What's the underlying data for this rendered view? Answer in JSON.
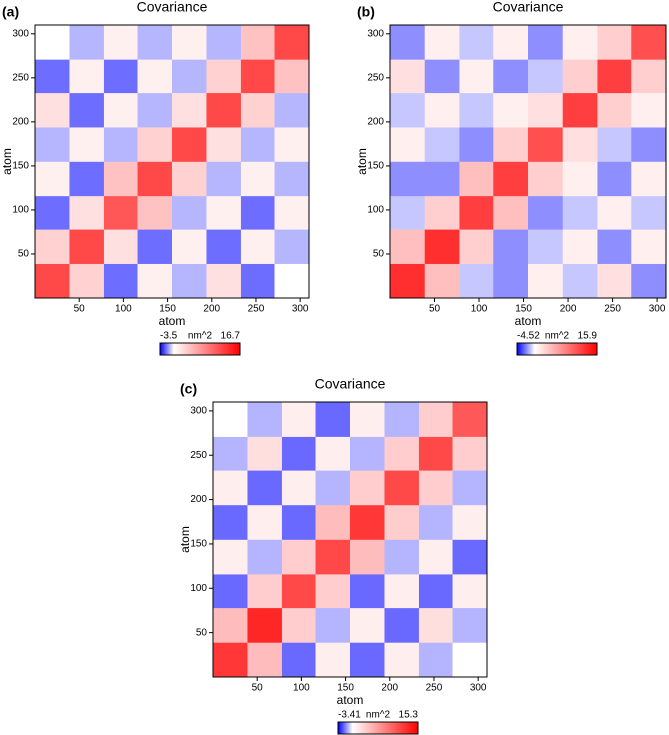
{
  "chart_data": [
    {
      "type": "heatmap",
      "panel_label": "(a)",
      "title": "Covariance",
      "xlabel": "atom",
      "ylabel": "atom",
      "xlim": [
        0,
        310
      ],
      "ylim": [
        0,
        310
      ],
      "xticks": [
        50,
        100,
        150,
        200,
        250,
        300
      ],
      "yticks": [
        50,
        100,
        150,
        200,
        250,
        300
      ],
      "xbins": [
        0,
        39,
        78,
        116,
        155,
        194,
        233,
        271,
        310
      ],
      "ybins": [
        0,
        39,
        78,
        116,
        155,
        194,
        233,
        271,
        310
      ],
      "z": [
        [
          12,
          3,
          -2,
          1,
          -1,
          2,
          -2,
          0
        ],
        [
          3,
          12,
          2,
          -2,
          1,
          -2,
          1,
          -1
        ],
        [
          -2,
          2,
          11,
          4,
          -1,
          1,
          -2,
          1
        ],
        [
          1,
          -2,
          4,
          12,
          3,
          -1,
          1,
          -1
        ],
        [
          -1,
          1,
          -1,
          3,
          12,
          2,
          -1,
          1
        ],
        [
          2,
          -2,
          1,
          -1,
          2,
          12,
          3,
          -1
        ],
        [
          -2,
          1,
          -2,
          1,
          -1,
          3,
          12,
          4
        ],
        [
          0,
          -1,
          1,
          -1,
          1,
          -1,
          4,
          12
        ]
      ],
      "zlim": [
        -3.5,
        16.7
      ],
      "colorbar_label": "nm^2",
      "colors": [
        "#0000ff",
        "#ffffff",
        "#ff0000"
      ]
    },
    {
      "type": "heatmap",
      "panel_label": "(b)",
      "title": "Covariance",
      "xlabel": "atom",
      "ylabel": "atom",
      "xlim": [
        0,
        310
      ],
      "ylim": [
        0,
        310
      ],
      "xticks": [
        50,
        100,
        150,
        200,
        250,
        300
      ],
      "yticks": [
        50,
        100,
        150,
        200,
        250,
        300
      ],
      "xbins": [
        0,
        39,
        78,
        116,
        155,
        194,
        233,
        271,
        310
      ],
      "ybins": [
        0,
        39,
        78,
        116,
        155,
        194,
        233,
        271,
        310
      ],
      "z": [
        [
          13,
          4,
          -1,
          -2,
          1,
          -1,
          2,
          -2
        ],
        [
          4,
          13,
          3,
          -2,
          -1,
          1,
          -2,
          1
        ],
        [
          -1,
          3,
          12,
          4,
          -2,
          -1,
          1,
          -1
        ],
        [
          -2,
          -2,
          4,
          12,
          3,
          1,
          -2,
          1
        ],
        [
          1,
          -1,
          -2,
          3,
          11,
          2,
          -1,
          -2
        ],
        [
          -1,
          1,
          -1,
          1,
          2,
          12,
          3,
          1
        ],
        [
          2,
          -2,
          1,
          -2,
          -1,
          3,
          12,
          3
        ],
        [
          -2,
          1,
          -1,
          1,
          -2,
          1,
          3,
          11
        ]
      ],
      "zlim": [
        -4.52,
        15.9
      ],
      "colorbar_label": "nm^2",
      "colors": [
        "#0000ff",
        "#ffffff",
        "#ff0000"
      ]
    },
    {
      "type": "heatmap",
      "panel_label": "(c)",
      "title": "Covariance",
      "xlabel": "atom",
      "ylabel": "atom",
      "xlim": [
        0,
        310
      ],
      "ylim": [
        0,
        310
      ],
      "xticks": [
        50,
        100,
        150,
        200,
        250,
        300
      ],
      "yticks": [
        50,
        100,
        150,
        200,
        250,
        300
      ],
      "xbins": [
        0,
        39,
        78,
        116,
        155,
        194,
        233,
        271,
        310
      ],
      "ybins": [
        0,
        39,
        78,
        116,
        155,
        194,
        233,
        271,
        310
      ],
      "z": [
        [
          12,
          4,
          -2,
          1,
          -2,
          1,
          -1,
          0
        ],
        [
          4,
          13,
          3,
          -1,
          1,
          -2,
          2,
          -1
        ],
        [
          -2,
          3,
          11,
          3,
          -2,
          1,
          -2,
          1
        ],
        [
          1,
          -1,
          3,
          11,
          4,
          -1,
          1,
          -2
        ],
        [
          -2,
          1,
          -2,
          4,
          12,
          3,
          -1,
          1
        ],
        [
          1,
          -2,
          1,
          -1,
          3,
          11,
          3,
          -1
        ],
        [
          -1,
          2,
          -2,
          1,
          -1,
          3,
          11,
          3
        ],
        [
          0,
          -1,
          1,
          -2,
          1,
          -1,
          3,
          10
        ]
      ],
      "zlim": [
        -3.41,
        15.3
      ],
      "colorbar_label": "nm^2",
      "colors": [
        "#0000ff",
        "#ffffff",
        "#ff0000"
      ]
    }
  ]
}
